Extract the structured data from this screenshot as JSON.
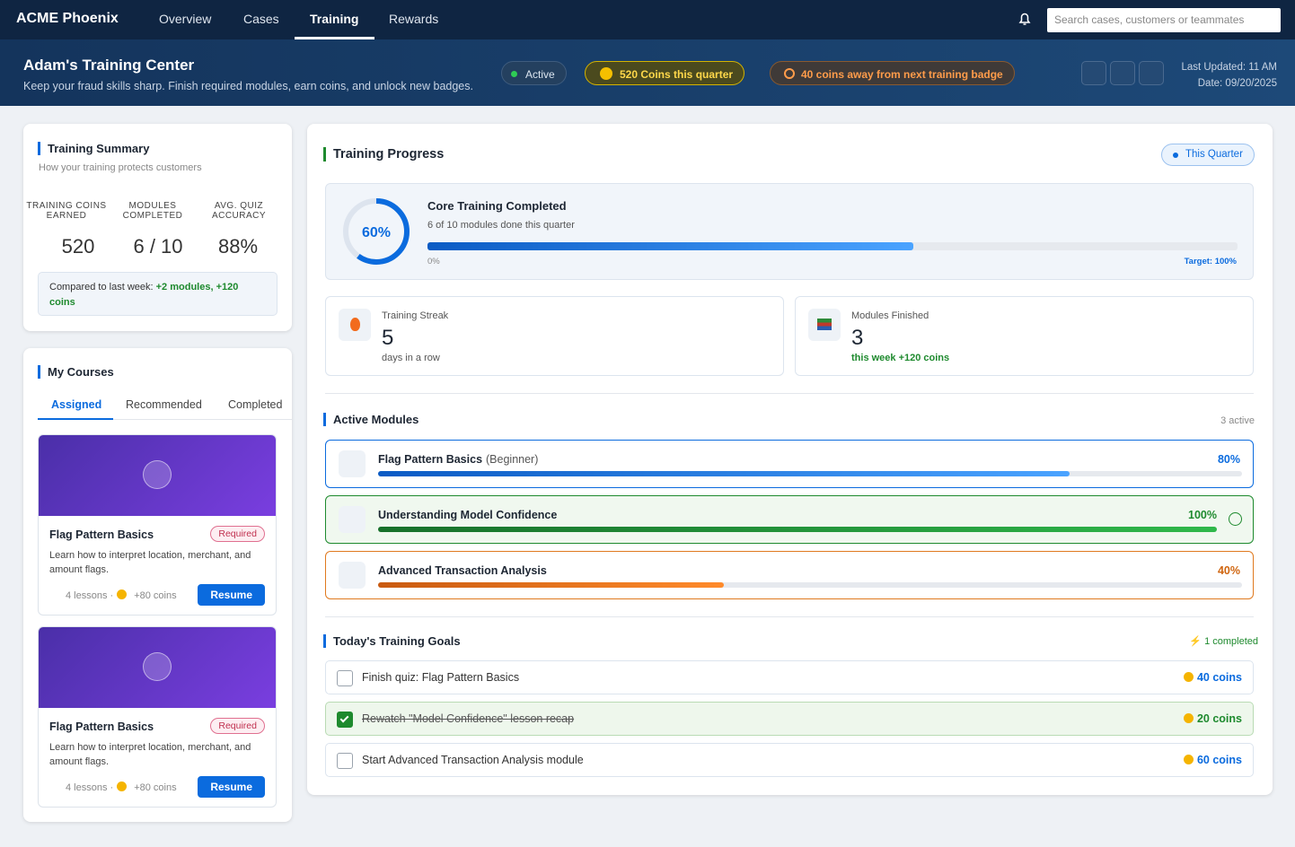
{
  "nav": {
    "brand": "ACME Phoenix",
    "items": [
      "Overview",
      "Cases",
      "Training",
      "Rewards"
    ],
    "search_placeholder": "Search cases, customers or teammates"
  },
  "header": {
    "title": "Adam's Training Center",
    "subtitle": "Keep your fraud skills sharp. Finish required modules, earn coins, and unlock new badges.",
    "status": "Active",
    "coins_badge": "520 Coins this quarter",
    "badge_progress": "40 coins away from next training badge",
    "last_updated": "Last Updated: 11 AM",
    "date": "Date: 09/20/2025"
  },
  "summary": {
    "title": "Training Summary",
    "subtitle": "How your training protects customers",
    "stats": [
      {
        "label": "TRAINING COINS EARNED",
        "value": "520"
      },
      {
        "label": "MODULES COMPLETED",
        "value": "6 / 10"
      },
      {
        "label": "AVG. QUIZ ACCURACY",
        "value": "88%"
      }
    ],
    "comparison_prefix": "Compared to last week:",
    "comparison_highlight": "+2 modules, +120 coins"
  },
  "courses": {
    "title": "My Courses",
    "tabs": [
      "Assigned",
      "Recommended",
      "Completed"
    ],
    "cards": [
      {
        "title": "Flag Pattern Basics",
        "tag": "Required",
        "description": "Learn how to interpret location, merchant, and amount flags.",
        "lessons": "4 lessons ·",
        "coins": "+80 coins",
        "action": "Resume"
      },
      {
        "title": "Flag Pattern Basics",
        "tag": "Required",
        "description": "Learn how to interpret location, merchant, and amount flags.",
        "lessons": "4 lessons ·",
        "coins": "+80 coins",
        "action": "Resume"
      }
    ]
  },
  "progress": {
    "title": "Training Progress",
    "period": "This Quarter",
    "core": {
      "percent": {
        "value": 60,
        "label": "60%"
      },
      "title": "Core Training Completed",
      "subtitle": "6 of 10 modules done this quarter",
      "axis_min": "0%",
      "target": "Target: 100%"
    },
    "stats": [
      {
        "label": "Training Streak",
        "value": "5",
        "note": "days in a row"
      },
      {
        "label": "Modules Finished",
        "value": "3",
        "note": "this week +120 coins"
      }
    ]
  },
  "modules": {
    "title": "Active Modules",
    "count": "3 active",
    "items": [
      {
        "name": "Flag Pattern Basics",
        "level": "(Beginner)",
        "progress": {
          "value": 80,
          "label": "80%"
        }
      },
      {
        "name": "Understanding Model Confidence",
        "progress": {
          "value": 100,
          "label": "100%"
        }
      },
      {
        "name": "Advanced Transaction Analysis",
        "progress": {
          "value": 40,
          "label": "40%"
        }
      }
    ]
  },
  "goals": {
    "title": "Today's Training Goals",
    "summary": "1 completed",
    "items": [
      {
        "text": "Finish quiz: Flag Pattern Basics",
        "reward": "40 coins",
        "done": false
      },
      {
        "text": "Rewatch \"Model Confidence\" lesson recap",
        "reward": "20 coins",
        "done": true
      },
      {
        "text": "Start Advanced Transaction Analysis module",
        "reward": "60 coins",
        "done": false
      }
    ]
  }
}
